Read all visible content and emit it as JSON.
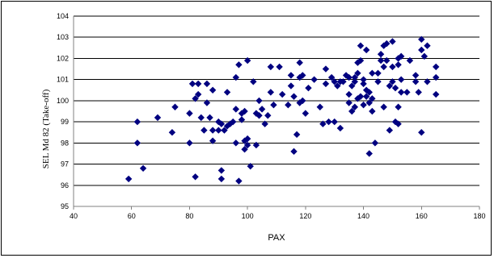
{
  "chart_data": {
    "type": "scatter",
    "title": "",
    "xlabel": "PAX",
    "ylabel": "SEL Md 82 (Take-off)",
    "xlim": [
      40,
      180
    ],
    "ylim": [
      95,
      104
    ],
    "x_ticks": [
      "40",
      "60",
      "80",
      "100",
      "120",
      "140",
      "160",
      "180"
    ],
    "y_ticks": [
      "95",
      "96",
      "97",
      "98",
      "99",
      "100",
      "101",
      "102",
      "103",
      "104"
    ],
    "grid": "horizontal major gridlines",
    "legend": "none",
    "marker": "diamond",
    "marker_color": "#000080",
    "points": [
      [
        59,
        96.3
      ],
      [
        62,
        99.0
      ],
      [
        62,
        98.0
      ],
      [
        64,
        96.8
      ],
      [
        69,
        99.2
      ],
      [
        74,
        98.5
      ],
      [
        75,
        99.7
      ],
      [
        80,
        98.0
      ],
      [
        80,
        99.4
      ],
      [
        81,
        100.8
      ],
      [
        82,
        96.4
      ],
      [
        82,
        100.1
      ],
      [
        83,
        100.8
      ],
      [
        83,
        100.3
      ],
      [
        84,
        99.2
      ],
      [
        85,
        98.6
      ],
      [
        86,
        100.8
      ],
      [
        86,
        99.9
      ],
      [
        87,
        99.2
      ],
      [
        88,
        98.6
      ],
      [
        88,
        98.1
      ],
      [
        88,
        100.5
      ],
      [
        90,
        98.6
      ],
      [
        90,
        99.0
      ],
      [
        91,
        96.7
      ],
      [
        91,
        96.3
      ],
      [
        91,
        98.9
      ],
      [
        92,
        98.6
      ],
      [
        93,
        100.4
      ],
      [
        93,
        98.8
      ],
      [
        94,
        98.9
      ],
      [
        95,
        99.0
      ],
      [
        96,
        99.6
      ],
      [
        96,
        101.1
      ],
      [
        96,
        98.0
      ],
      [
        97,
        96.2
      ],
      [
        97,
        101.7
      ],
      [
        98,
        99.4
      ],
      [
        98,
        99.1
      ],
      [
        99,
        97.7
      ],
      [
        99,
        98.1
      ],
      [
        99,
        99.5
      ],
      [
        100,
        98.2
      ],
      [
        100,
        101.9
      ],
      [
        100,
        97.9
      ],
      [
        101,
        96.9
      ],
      [
        102,
        100.9
      ],
      [
        103,
        99.4
      ],
      [
        103,
        97.9
      ],
      [
        104,
        100.0
      ],
      [
        104,
        99.3
      ],
      [
        105,
        99.6
      ],
      [
        106,
        98.9
      ],
      [
        107,
        99.3
      ],
      [
        108,
        101.6
      ],
      [
        108,
        100.4
      ],
      [
        109,
        99.8
      ],
      [
        111,
        101.6
      ],
      [
        112,
        100.3
      ],
      [
        114,
        99.8
      ],
      [
        115,
        101.2
      ],
      [
        115,
        100.7
      ],
      [
        116,
        97.6
      ],
      [
        116,
        100.2
      ],
      [
        117,
        98.4
      ],
      [
        118,
        101.1
      ],
      [
        118,
        99.9
      ],
      [
        118,
        101.8
      ],
      [
        119,
        100.0
      ],
      [
        119,
        101.2
      ],
      [
        120,
        99.4
      ],
      [
        121,
        100.6
      ],
      [
        123,
        101.0
      ],
      [
        125,
        99.7
      ],
      [
        126,
        98.9
      ],
      [
        127,
        101.5
      ],
      [
        127,
        100.8
      ],
      [
        128,
        99.0
      ],
      [
        129,
        101.1
      ],
      [
        130,
        99.0
      ],
      [
        130,
        100.9
      ],
      [
        131,
        100.7
      ],
      [
        132,
        100.9
      ],
      [
        132,
        98.7
      ],
      [
        133,
        100.9
      ],
      [
        134,
        101.2
      ],
      [
        135,
        101.1
      ],
      [
        135,
        100.3
      ],
      [
        135,
        99.9
      ],
      [
        136,
        100.7
      ],
      [
        136,
        99.5
      ],
      [
        137,
        99.7
      ],
      [
        137,
        101.1
      ],
      [
        137,
        100.9
      ],
      [
        138,
        101.8
      ],
      [
        138,
        101.3
      ],
      [
        138,
        100.1
      ],
      [
        139,
        100.2
      ],
      [
        139,
        102.6
      ],
      [
        139,
        101.9
      ],
      [
        140,
        100.8
      ],
      [
        140,
        101.0
      ],
      [
        140,
        99.8
      ],
      [
        141,
        100.2
      ],
      [
        141,
        102.4
      ],
      [
        141,
        100.5
      ],
      [
        142,
        97.5
      ],
      [
        142,
        99.9
      ],
      [
        142,
        100.4
      ],
      [
        143,
        100.1
      ],
      [
        143,
        101.3
      ],
      [
        143,
        99.5
      ],
      [
        144,
        98.0
      ],
      [
        145,
        100.9
      ],
      [
        145,
        101.3
      ],
      [
        146,
        101.9
      ],
      [
        146,
        102.2
      ],
      [
        147,
        102.6
      ],
      [
        147,
        101.6
      ],
      [
        147,
        99.7
      ],
      [
        148,
        102.7
      ],
      [
        148,
        101.9
      ],
      [
        149,
        98.6
      ],
      [
        149,
        100.7
      ],
      [
        150,
        102.8
      ],
      [
        150,
        101.6
      ],
      [
        150,
        100.9
      ],
      [
        151,
        99.0
      ],
      [
        151,
        100.6
      ],
      [
        152,
        102.0
      ],
      [
        152,
        101.7
      ],
      [
        152,
        99.7
      ],
      [
        152,
        98.9
      ],
      [
        153,
        102.1
      ],
      [
        153,
        101.0
      ],
      [
        153,
        100.4
      ],
      [
        155,
        100.4
      ],
      [
        156,
        101.9
      ],
      [
        158,
        101.2
      ],
      [
        158,
        100.9
      ],
      [
        159,
        100.4
      ],
      [
        160,
        102.9
      ],
      [
        160,
        102.4
      ],
      [
        160,
        98.5
      ],
      [
        161,
        102.1
      ],
      [
        162,
        102.6
      ],
      [
        162,
        100.9
      ],
      [
        165,
        101.6
      ],
      [
        165,
        100.3
      ],
      [
        165,
        101.1
      ]
    ]
  }
}
